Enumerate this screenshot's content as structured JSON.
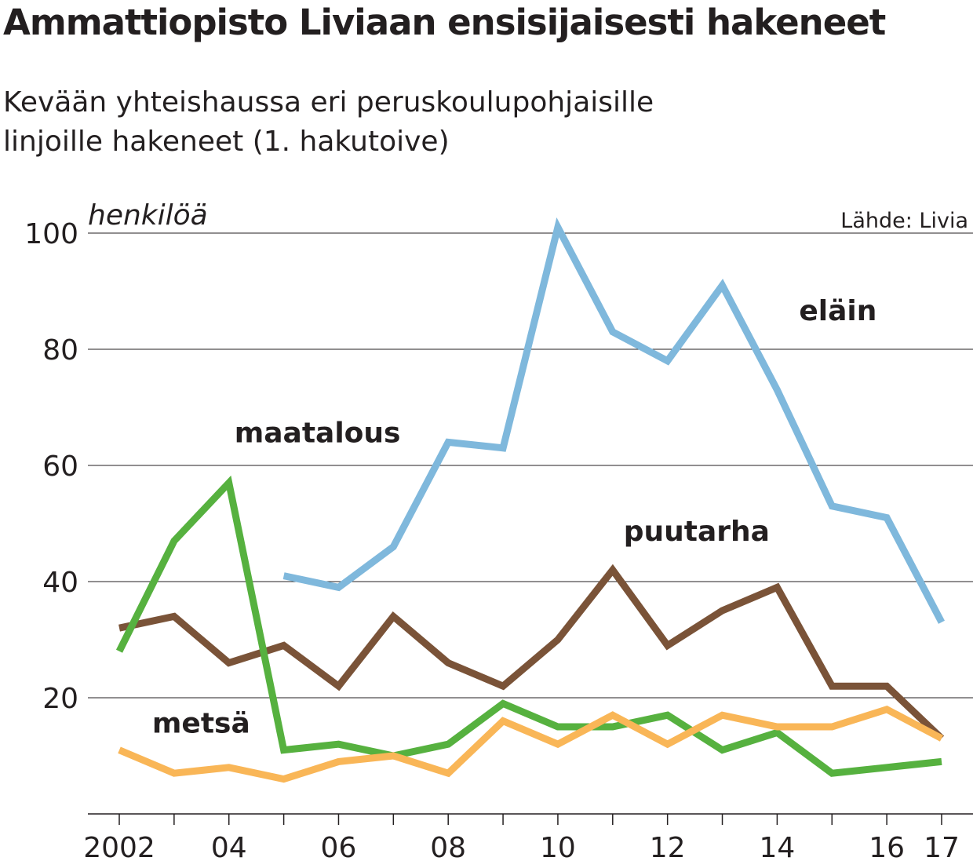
{
  "title": "Ammattiopisto Liviaan ensisijaisesti hakeneet",
  "subtitle_line1": "Kevään yhteishaussa eri peruskoulupohjaisille",
  "subtitle_line2": "linjoille hakeneet (1. hakutoive)",
  "chart_data": {
    "type": "line",
    "ylabel": "henkilöä",
    "source": "Lähde: Livia",
    "ylim": [
      0,
      100
    ],
    "yticks": [
      20,
      40,
      60,
      80,
      100
    ],
    "x": [
      2002,
      2003,
      2004,
      2005,
      2006,
      2007,
      2008,
      2009,
      2010,
      2011,
      2012,
      2013,
      2014,
      2015,
      2016,
      2017
    ],
    "xtick_labels": [
      {
        "x": 2002,
        "label": "2002"
      },
      {
        "x": 2004,
        "label": "04"
      },
      {
        "x": 2006,
        "label": "06"
      },
      {
        "x": 2008,
        "label": "08"
      },
      {
        "x": 2010,
        "label": "10"
      },
      {
        "x": 2012,
        "label": "12"
      },
      {
        "x": 2014,
        "label": "14"
      },
      {
        "x": 2016,
        "label": "16"
      },
      {
        "x": 2017,
        "label": "17"
      }
    ],
    "grid": true,
    "series": [
      {
        "name": "eläin",
        "color": "#7fb8dc",
        "values": [
          null,
          null,
          null,
          41,
          39,
          46,
          64,
          63,
          101,
          83,
          78,
          91,
          73,
          53,
          51,
          33
        ]
      },
      {
        "name": "puutarha",
        "color": "#7a5338",
        "values": [
          32,
          34,
          26,
          29,
          22,
          34,
          26,
          22,
          30,
          42,
          29,
          35,
          39,
          22,
          22,
          13
        ]
      },
      {
        "name": "maatalous",
        "color": "#56b13f",
        "values": [
          28,
          47,
          57,
          11,
          12,
          10,
          12,
          19,
          15,
          15,
          17,
          11,
          14,
          7,
          8,
          9
        ]
      },
      {
        "name": "metsä",
        "color": "#f9b657",
        "values": [
          11,
          7,
          8,
          6,
          9,
          10,
          7,
          16,
          12,
          17,
          12,
          17,
          15,
          15,
          18,
          13
        ]
      }
    ],
    "series_labels": [
      {
        "series": "eläin",
        "x": 2014.4,
        "y": 85
      },
      {
        "series": "puutarha",
        "x": 2011.2,
        "y": 47
      },
      {
        "series": "maatalous",
        "x": 2004.1,
        "y": 64
      },
      {
        "series": "metsä",
        "x": 2002.6,
        "y": 14
      }
    ]
  }
}
